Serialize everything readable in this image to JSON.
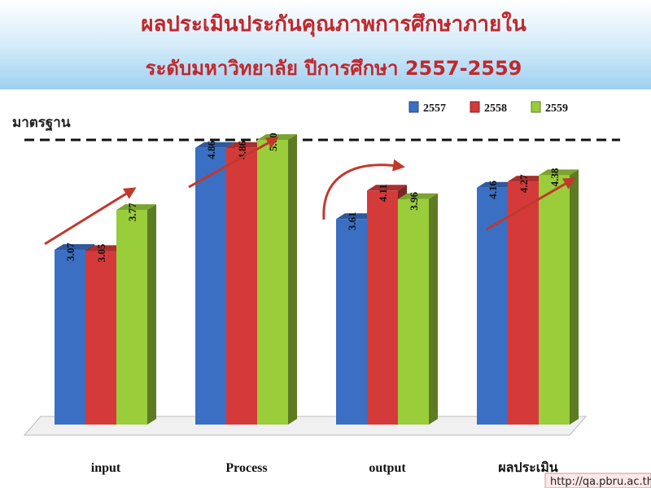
{
  "chart_data": {
    "type": "bar3d",
    "title": "ผลประเมินประกันคุณภาพการศึกษาภายใน",
    "subtitle": "ระดับมหาวิทยาลัย ปีการศึกษา 2557-2559",
    "reference_label": "มาตรฐาน",
    "reference_value": 5,
    "categories": [
      "input",
      "Process",
      "output",
      "ผลประเมิน"
    ],
    "series": [
      {
        "name": "2557",
        "color": "#3a6fc4",
        "values": [
          3.07,
          4.86,
          3.61,
          4.16
        ],
        "value_labels": [
          "3.07",
          "4.86",
          "3.61",
          "4.16"
        ]
      },
      {
        "name": "2558",
        "color": "#d43a3a",
        "values": [
          3.05,
          4.86,
          4.11,
          4.27
        ],
        "value_labels": [
          "3.05",
          "4.86",
          "4.11",
          "4.27"
        ]
      },
      {
        "name": "2559",
        "color": "#9acd3a",
        "values": [
          3.77,
          5.0,
          3.96,
          4.38
        ],
        "value_labels": [
          "3.77",
          "5.00",
          "3.96",
          "4.38"
        ]
      }
    ],
    "ylim": [
      0,
      5
    ],
    "legend": "top-right",
    "footer": "http://qa.pbru.ac.th"
  }
}
